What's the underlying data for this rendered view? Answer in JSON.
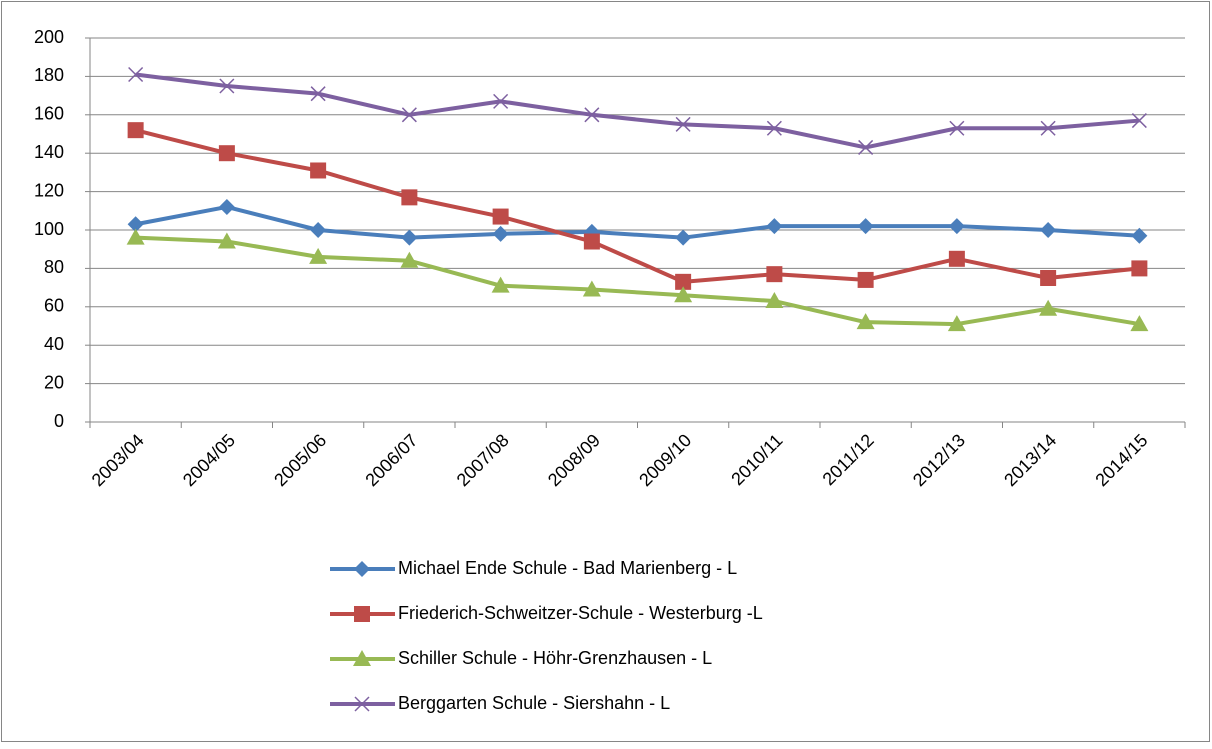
{
  "chart_data": {
    "type": "line",
    "categories": [
      "2003/04",
      "2004/05",
      "2005/06",
      "2006/07",
      "2007/08",
      "2008/09",
      "2009/10",
      "2010/11",
      "2011/12",
      "2012/13",
      "2013/14",
      "2014/15"
    ],
    "series": [
      {
        "name": "Michael Ende Schule - Bad Marienberg - L",
        "color": "#4a7ebb",
        "marker": "diamond",
        "values": [
          103,
          112,
          100,
          96,
          98,
          99,
          96,
          102,
          102,
          102,
          100,
          97
        ]
      },
      {
        "name": "Friederich-Schweitzer-Schule - Westerburg -L",
        "color": "#be4b48",
        "marker": "square",
        "values": [
          152,
          140,
          131,
          117,
          107,
          94,
          73,
          77,
          74,
          85,
          75,
          80
        ]
      },
      {
        "name": "Schiller Schule - Höhr-Grenzhausen - L",
        "color": "#98b954",
        "marker": "triangle",
        "values": [
          96,
          94,
          86,
          84,
          71,
          69,
          66,
          63,
          52,
          51,
          59,
          51
        ]
      },
      {
        "name": "Berggarten Schule - Siershahn - L",
        "color": "#7d60a0",
        "marker": "x",
        "values": [
          181,
          175,
          171,
          160,
          167,
          160,
          155,
          153,
          143,
          153,
          153,
          157
        ]
      }
    ],
    "ylim": [
      0,
      200
    ],
    "yticks": [
      0,
      20,
      40,
      60,
      80,
      100,
      120,
      140,
      160,
      180,
      200
    ],
    "grid": true,
    "legend": "bottom"
  }
}
